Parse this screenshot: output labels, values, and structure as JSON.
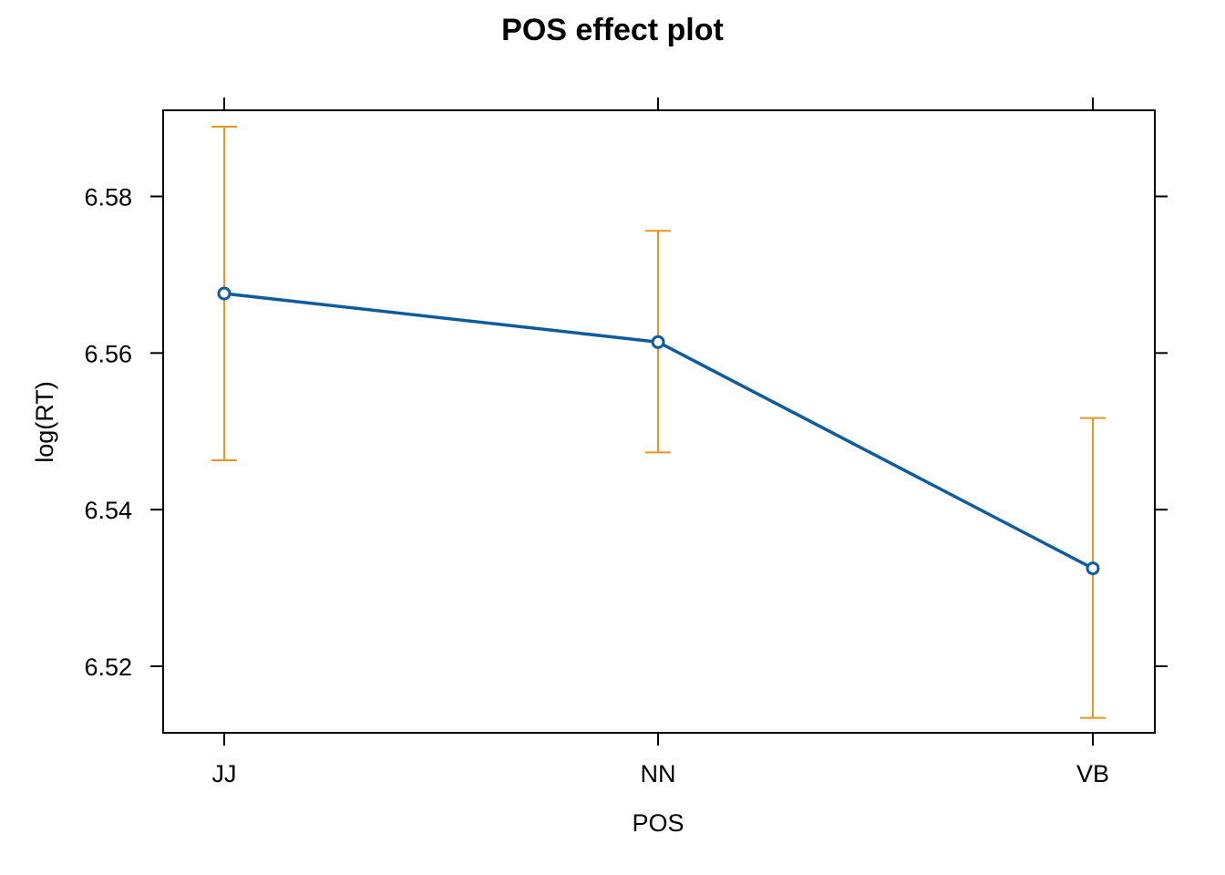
{
  "chart_data": {
    "type": "line",
    "title": "POS effect plot",
    "xlabel": "POS",
    "ylabel": "log(RT)",
    "categories": [
      "JJ",
      "NN",
      "VB"
    ],
    "values": [
      6.5676,
      6.5614,
      6.5325
    ],
    "lower": [
      6.5463,
      6.5473,
      6.5134
    ],
    "upper": [
      6.5889,
      6.5756,
      6.5517
    ],
    "ylim": [
      6.5115,
      6.591
    ],
    "yticks": [
      6.52,
      6.54,
      6.56,
      6.58
    ],
    "ytick_labels": [
      "6.52",
      "6.54",
      "6.56",
      "6.58"
    ],
    "colors": {
      "line": "#0e5c9e",
      "ci": "#e8961e",
      "frame": "#000000"
    },
    "grid": false
  }
}
